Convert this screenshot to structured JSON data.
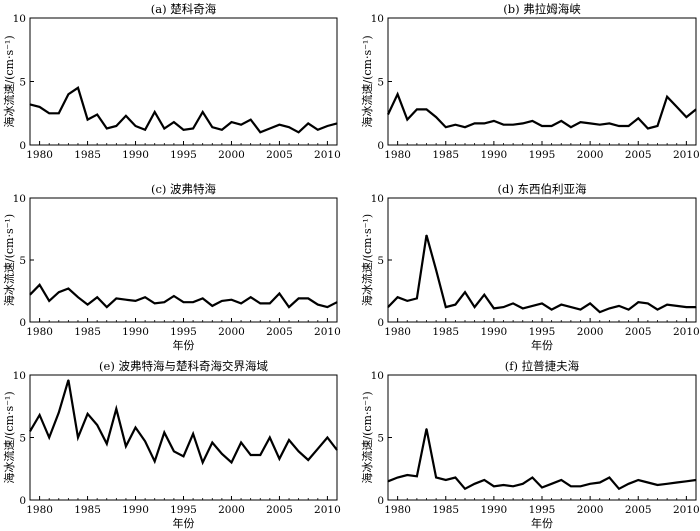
{
  "figure": {
    "panels": [
      {
        "title": "(a) 楚科奇海",
        "ylabel": "海冰流速/(cm·s⁻¹)",
        "xlabel": ""
      },
      {
        "title": "(b) 弗拉姆海峡",
        "ylabel": "海冰流速/(cm·s⁻¹)",
        "xlabel": ""
      },
      {
        "title": "(c) 波弗特海",
        "ylabel": "海冰流速/(cm·s⁻¹)",
        "xlabel": "年份"
      },
      {
        "title": "(d) 东西伯利亚海",
        "ylabel": "海冰流速/(cm·s⁻¹)",
        "xlabel": "年份"
      },
      {
        "title": "(e) 波弗特海与楚科奇海交界海域",
        "ylabel": "海冰流速/(cm·s⁻¹)",
        "xlabel": "年份"
      },
      {
        "title": "(f) 拉普捷夫海",
        "ylabel": "海冰流速/(cm·s⁻¹)",
        "xlabel": "年份"
      }
    ]
  },
  "chart_data": [
    {
      "type": "line",
      "title": "(a) 楚科奇海",
      "xlabel": "",
      "ylabel": "海冰流速/(cm·s⁻¹)",
      "xlim": [
        1979,
        2011
      ],
      "ylim": [
        0,
        10
      ],
      "xticks": [
        1980,
        1985,
        1990,
        1995,
        2000,
        2005,
        2010
      ],
      "yticks": [
        0,
        5,
        10
      ],
      "x": [
        1979,
        1980,
        1981,
        1982,
        1983,
        1984,
        1985,
        1986,
        1987,
        1988,
        1989,
        1990,
        1991,
        1992,
        1993,
        1994,
        1995,
        1996,
        1997,
        1998,
        1999,
        2000,
        2001,
        2002,
        2003,
        2004,
        2005,
        2006,
        2007,
        2008,
        2009,
        2010,
        2011
      ],
      "series": [
        {
          "values": [
            3.2,
            3.0,
            2.5,
            2.5,
            4.0,
            4.5,
            2.0,
            2.4,
            1.3,
            1.5,
            2.3,
            1.5,
            1.2,
            2.6,
            1.3,
            1.8,
            1.2,
            1.3,
            2.6,
            1.4,
            1.2,
            1.8,
            1.6,
            2.0,
            1.0,
            1.3,
            1.6,
            1.4,
            1.0,
            1.7,
            1.2,
            1.5,
            1.7
          ]
        }
      ]
    },
    {
      "type": "line",
      "title": "(b) 弗拉姆海峡",
      "xlabel": "",
      "ylabel": "海冰流速/(cm·s⁻¹)",
      "xlim": [
        1979,
        2011
      ],
      "ylim": [
        0,
        10
      ],
      "xticks": [
        1980,
        1985,
        1990,
        1995,
        2000,
        2005,
        2010
      ],
      "yticks": [
        0,
        5,
        10
      ],
      "x": [
        1979,
        1980,
        1981,
        1982,
        1983,
        1984,
        1985,
        1986,
        1987,
        1988,
        1989,
        1990,
        1991,
        1992,
        1993,
        1994,
        1995,
        1996,
        1997,
        1998,
        1999,
        2000,
        2001,
        2002,
        2003,
        2004,
        2005,
        2006,
        2007,
        2008,
        2009,
        2010,
        2011
      ],
      "series": [
        {
          "values": [
            2.4,
            4.0,
            2.0,
            2.8,
            2.8,
            2.2,
            1.4,
            1.6,
            1.4,
            1.7,
            1.7,
            1.9,
            1.6,
            1.6,
            1.7,
            1.9,
            1.5,
            1.5,
            1.9,
            1.4,
            1.8,
            1.7,
            1.6,
            1.7,
            1.5,
            1.5,
            2.1,
            1.3,
            1.5,
            3.8,
            3.0,
            2.2,
            2.8
          ]
        }
      ]
    },
    {
      "type": "line",
      "title": "(c) 波弗特海",
      "xlabel": "年份",
      "ylabel": "海冰流速/(cm·s⁻¹)",
      "xlim": [
        1979,
        2011
      ],
      "ylim": [
        0,
        10
      ],
      "xticks": [
        1980,
        1985,
        1990,
        1995,
        2000,
        2005,
        2010
      ],
      "yticks": [
        0,
        5,
        10
      ],
      "x": [
        1979,
        1980,
        1981,
        1982,
        1983,
        1984,
        1985,
        1986,
        1987,
        1988,
        1989,
        1990,
        1991,
        1992,
        1993,
        1994,
        1995,
        1996,
        1997,
        1998,
        1999,
        2000,
        2001,
        2002,
        2003,
        2004,
        2005,
        2006,
        2007,
        2008,
        2009,
        2010,
        2011
      ],
      "series": [
        {
          "values": [
            2.2,
            3.0,
            1.7,
            2.4,
            2.7,
            2.0,
            1.4,
            2.0,
            1.2,
            1.9,
            1.8,
            1.7,
            2.0,
            1.5,
            1.6,
            2.1,
            1.6,
            1.6,
            1.9,
            1.3,
            1.7,
            1.8,
            1.5,
            2.0,
            1.5,
            1.5,
            2.3,
            1.2,
            1.9,
            1.9,
            1.4,
            1.2,
            1.6
          ]
        }
      ]
    },
    {
      "type": "line",
      "title": "(d) 东西伯利亚海",
      "xlabel": "年份",
      "ylabel": "海冰流速/(cm·s⁻¹)",
      "xlim": [
        1979,
        2011
      ],
      "ylim": [
        0,
        10
      ],
      "xticks": [
        1980,
        1985,
        1990,
        1995,
        2000,
        2005,
        2010
      ],
      "yticks": [
        0,
        5,
        10
      ],
      "x": [
        1979,
        1980,
        1981,
        1982,
        1983,
        1984,
        1985,
        1986,
        1987,
        1988,
        1989,
        1990,
        1991,
        1992,
        1993,
        1994,
        1995,
        1996,
        1997,
        1998,
        1999,
        2000,
        2001,
        2002,
        2003,
        2004,
        2005,
        2006,
        2007,
        2008,
        2009,
        2010,
        2011
      ],
      "series": [
        {
          "values": [
            1.2,
            2.0,
            1.7,
            1.9,
            7.0,
            4.2,
            1.2,
            1.4,
            2.4,
            1.2,
            2.2,
            1.1,
            1.2,
            1.5,
            1.1,
            1.3,
            1.5,
            1.0,
            1.4,
            1.2,
            1.0,
            1.5,
            0.8,
            1.1,
            1.3,
            1.0,
            1.6,
            1.5,
            1.0,
            1.4,
            1.3,
            1.2,
            1.2
          ]
        }
      ]
    },
    {
      "type": "line",
      "title": "(e) 波弗特海与楚科奇海交界海域",
      "xlabel": "年份",
      "ylabel": "海冰流速/(cm·s⁻¹)",
      "xlim": [
        1979,
        2011
      ],
      "ylim": [
        0,
        10
      ],
      "xticks": [
        1980,
        1985,
        1990,
        1995,
        2000,
        2005,
        2010
      ],
      "yticks": [
        0,
        5,
        10
      ],
      "x": [
        1979,
        1980,
        1981,
        1982,
        1983,
        1984,
        1985,
        1986,
        1987,
        1988,
        1989,
        1990,
        1991,
        1992,
        1993,
        1994,
        1995,
        1996,
        1997,
        1998,
        1999,
        2000,
        2001,
        2002,
        2003,
        2004,
        2005,
        2006,
        2007,
        2008,
        2009,
        2010,
        2011
      ],
      "series": [
        {
          "values": [
            5.5,
            6.8,
            5.0,
            7.0,
            9.6,
            5.0,
            6.9,
            6.0,
            4.5,
            7.3,
            4.3,
            5.8,
            4.7,
            3.1,
            5.4,
            3.9,
            3.5,
            5.3,
            3.0,
            4.6,
            3.7,
            3.0,
            4.6,
            3.6,
            3.6,
            5.0,
            3.3,
            4.8,
            3.9,
            3.2,
            4.1,
            5.0,
            4.0
          ]
        }
      ]
    },
    {
      "type": "line",
      "title": "(f) 拉普捷夫海",
      "xlabel": "年份",
      "ylabel": "海冰流速/(cm·s⁻¹)",
      "xlim": [
        1979,
        2011
      ],
      "ylim": [
        0,
        10
      ],
      "xticks": [
        1980,
        1985,
        1990,
        1995,
        2000,
        2005,
        2010
      ],
      "yticks": [
        0,
        5,
        10
      ],
      "x": [
        1979,
        1980,
        1981,
        1982,
        1983,
        1984,
        1985,
        1986,
        1987,
        1988,
        1989,
        1990,
        1991,
        1992,
        1993,
        1994,
        1995,
        1996,
        1997,
        1998,
        1999,
        2000,
        2001,
        2002,
        2003,
        2004,
        2005,
        2006,
        2007,
        2008,
        2009,
        2010,
        2011
      ],
      "series": [
        {
          "values": [
            1.5,
            1.8,
            2.0,
            1.9,
            5.7,
            1.8,
            1.6,
            1.8,
            0.9,
            1.3,
            1.6,
            1.1,
            1.2,
            1.1,
            1.3,
            1.8,
            1.0,
            1.3,
            1.6,
            1.1,
            1.1,
            1.3,
            1.4,
            1.8,
            0.9,
            1.3,
            1.6,
            1.4,
            1.2,
            1.3,
            1.4,
            1.5,
            1.6
          ]
        }
      ]
    }
  ]
}
